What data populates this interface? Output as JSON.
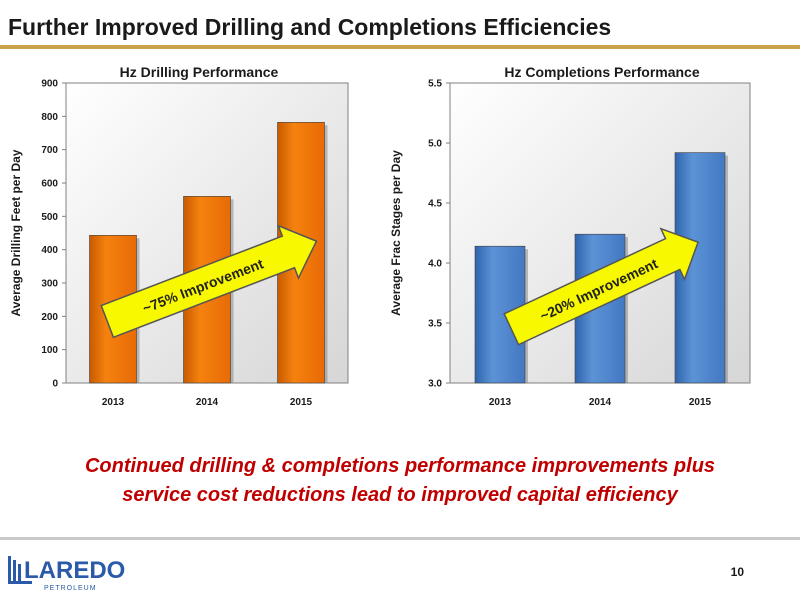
{
  "slide": {
    "title": "Further Improved Drilling and Completions Efficiencies",
    "tagline_line1": "Continued drilling & completions performance improvements plus",
    "tagline_line2": "service cost reductions lead to improved capital efficiency",
    "page_number": "10",
    "logo_name": "LAREDO",
    "logo_sub": "PETROLEUM"
  },
  "colors": {
    "accent_rule": "#c8a24a",
    "tagline": "#c00000",
    "orange_bar": "#f0740c",
    "blue_bar": "#4f86cc",
    "arrow": "#f8f800",
    "logo_blue": "#2a5aa8"
  },
  "chart_data": [
    {
      "type": "bar",
      "title": "Hz Drilling Performance",
      "ylabel": "Average Drilling Feet per Day",
      "xlabel": "",
      "categories": [
        "2013",
        "2014",
        "2015"
      ],
      "values": [
        443,
        560,
        782
      ],
      "ylim": [
        0,
        900
      ],
      "yticks": [
        "0",
        "100",
        "200",
        "300",
        "400",
        "500",
        "600",
        "700",
        "800",
        "900"
      ],
      "grid": false,
      "annotation": "~75% Improvement"
    },
    {
      "type": "bar",
      "title": "Hz Completions Performance",
      "ylabel": "Average Frac Stages per Day",
      "xlabel": "",
      "categories": [
        "2013",
        "2014",
        "2015"
      ],
      "values": [
        4.14,
        4.24,
        4.92
      ],
      "ylim": [
        3.0,
        5.5
      ],
      "yticks": [
        "3.0",
        "3.5",
        "4.0",
        "4.5",
        "5.0",
        "5.5"
      ],
      "grid": false,
      "annotation": "~20% Improvement"
    }
  ]
}
